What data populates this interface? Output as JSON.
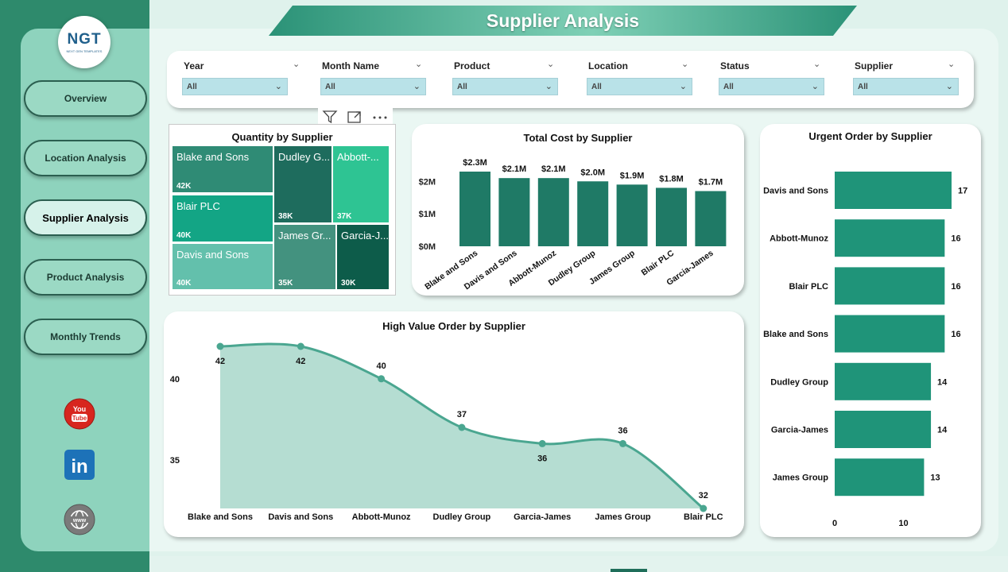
{
  "title": "Supplier Analysis",
  "logo": {
    "text": "NGT",
    "subtext": "NEXT GEN TEMPLATES"
  },
  "nav": [
    {
      "label": "Overview",
      "active": false
    },
    {
      "label": "Location Analysis",
      "active": false
    },
    {
      "label": "Supplier Analysis",
      "active": true
    },
    {
      "label": "Product Analysis",
      "active": false
    },
    {
      "label": "Monthly Trends",
      "active": false
    }
  ],
  "social": [
    {
      "icon": "youtube-icon",
      "text": "You Tube"
    },
    {
      "icon": "linkedin-icon",
      "text": "in"
    },
    {
      "icon": "globe-icon",
      "text": "www"
    }
  ],
  "filters": [
    {
      "label": "Year",
      "value": "All"
    },
    {
      "label": "Month Name",
      "value": "All"
    },
    {
      "label": "Product",
      "value": "All"
    },
    {
      "label": "Location",
      "value": "All"
    },
    {
      "label": "Status",
      "value": "All"
    },
    {
      "label": "Supplier",
      "value": "All"
    }
  ],
  "toolbar": {
    "icons": [
      "filter-icon",
      "focus-mode-icon",
      "more-options-icon"
    ]
  },
  "colors": {
    "primary": "#1f9479",
    "sidebar": "#8ed3bd",
    "strip": "#2e8a6c",
    "area": "#b5ddd2",
    "line": "#4aa690"
  },
  "chart_data": [
    {
      "type": "treemap",
      "title": "Quantity by Supplier",
      "items": [
        {
          "name": "Blake and Sons",
          "label": "Blake and Sons",
          "value": 42,
          "value_label": "42K",
          "color": "#2f8b75"
        },
        {
          "name": "Blair PLC",
          "label": "Blair PLC",
          "value": 40,
          "value_label": "40K",
          "color": "#13a585"
        },
        {
          "name": "Davis and Sons",
          "label": "Davis and Sons",
          "value": 40,
          "value_label": "40K",
          "color": "#63c0ac"
        },
        {
          "name": "Dudley Group",
          "label": "Dudley G...",
          "value": 38,
          "value_label": "38K",
          "color": "#1e6c5d"
        },
        {
          "name": "Abbott-Munoz",
          "label": "Abbott-...",
          "value": 37,
          "value_label": "37K",
          "color": "#2ec493"
        },
        {
          "name": "James Group",
          "label": "James Gr...",
          "value": 35,
          "value_label": "35K",
          "color": "#43927f"
        },
        {
          "name": "Garcia-James",
          "label": "Garcia-J...",
          "value": 30,
          "value_label": "30K",
          "color": "#0d5c4a"
        }
      ]
    },
    {
      "type": "bar",
      "title": "Total Cost by Supplier",
      "categories": [
        "Blake and Sons",
        "Davis and Sons",
        "Abbott-Munoz",
        "Dudley Group",
        "James Group",
        "Blair PLC",
        "Garcia-James"
      ],
      "values": [
        2.3,
        2.1,
        2.1,
        2.0,
        1.9,
        1.8,
        1.7
      ],
      "value_labels": [
        "$2.3M",
        "$2.1M",
        "$2.1M",
        "$2.0M",
        "$1.9M",
        "$1.8M",
        "$1.7M"
      ],
      "y_ticks": [
        0,
        1,
        2
      ],
      "y_tick_labels": [
        "$0M",
        "$1M",
        "$2M"
      ],
      "ylim": [
        0,
        2.3
      ],
      "color": "#1f7a66"
    },
    {
      "type": "bar",
      "orientation": "horizontal",
      "title": "Urgent Order by Supplier",
      "categories": [
        "Davis and Sons",
        "Abbott-Munoz",
        "Blair PLC",
        "Blake and Sons",
        "Dudley Group",
        "Garcia-James",
        "James Group"
      ],
      "values": [
        17,
        16,
        16,
        16,
        14,
        14,
        13
      ],
      "x_ticks": [
        0,
        10
      ],
      "xlim": [
        0,
        17
      ],
      "color": "#1f9479"
    },
    {
      "type": "area",
      "title": "High Value Order by Supplier",
      "categories": [
        "Blake and Sons",
        "Davis and Sons",
        "Abbott-Munoz",
        "Dudley Group",
        "Garcia-James",
        "James Group",
        "Blair PLC"
      ],
      "values": [
        42,
        42,
        40,
        37,
        36,
        36,
        32
      ],
      "y_ticks": [
        35,
        40
      ],
      "ylim": [
        32,
        42
      ],
      "color": "#4aa690"
    }
  ]
}
